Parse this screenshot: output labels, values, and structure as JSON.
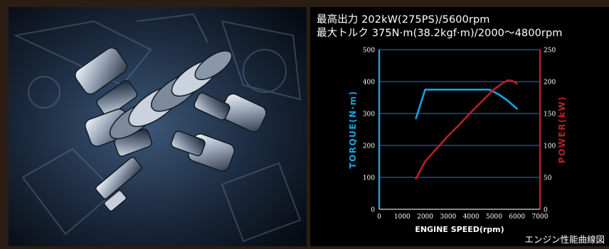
{
  "specs": {
    "max_power": "最高出力 202kW(275PS)/5600rpm",
    "max_torque": "最大トルク 375N·m(38.2kgf·m)/2000～4800rpm"
  },
  "caption": "エンジン性能曲線図",
  "chart_data": {
    "type": "line",
    "title": "",
    "xlabel": "ENGINE SPEED(rpm)",
    "ylabel_left": "TORQUE(N·m)",
    "ylabel_right": "POWER(kW)",
    "xlim": [
      0,
      7000
    ],
    "ylim_left": [
      0,
      500
    ],
    "ylim_right": [
      0,
      250
    ],
    "x_ticks": [
      "0",
      "1000",
      "2000",
      "3000",
      "4000",
      "5000",
      "6000",
      "7000"
    ],
    "y_left_ticks": [
      "0",
      "100",
      "200",
      "300",
      "400",
      "500"
    ],
    "y_right_ticks": [
      "0",
      "50",
      "100",
      "150",
      "200",
      "250"
    ],
    "grid": true,
    "colors": {
      "torque": "#1aa3e0",
      "power": "#b8202a",
      "grid": "#1f5fa6"
    },
    "series": [
      {
        "name": "TORQUE(N·m)",
        "axis": "left",
        "points": [
          [
            1600,
            285
          ],
          [
            2000,
            375
          ],
          [
            4800,
            375
          ],
          [
            5200,
            360
          ],
          [
            5600,
            340
          ],
          [
            6000,
            315
          ]
        ]
      },
      {
        "name": "POWER(kW)",
        "axis": "right",
        "points": [
          [
            1600,
            48
          ],
          [
            2000,
            75
          ],
          [
            2500,
            95
          ],
          [
            3000,
            115
          ],
          [
            3500,
            133
          ],
          [
            4000,
            152
          ],
          [
            4500,
            170
          ],
          [
            5000,
            188
          ],
          [
            5400,
            198
          ],
          [
            5600,
            202
          ],
          [
            5800,
            201
          ],
          [
            6000,
            197
          ]
        ]
      }
    ]
  }
}
